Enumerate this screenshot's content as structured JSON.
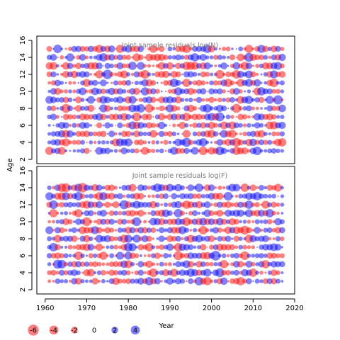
{
  "chart_data": {
    "type": "scatter",
    "ylabel": "Age",
    "xlabel": "Year",
    "x_range": [
      1961,
      2017
    ],
    "y_range": [
      3,
      15
    ],
    "x_ticks": [
      1960,
      1970,
      1980,
      1990,
      2000,
      2010,
      2020
    ],
    "y_ticks": [
      2,
      4,
      6,
      8,
      10,
      12,
      14,
      16
    ],
    "colors": {
      "positive": "#0000ff",
      "negative": "#ff0000"
    },
    "panels": [
      {
        "title": "Joint sample residuals log(N)",
        "xlim": [
          1958,
          2020
        ],
        "ylim": [
          1.5,
          16.5
        ],
        "ages": [
          3,
          4,
          5,
          6,
          7,
          8,
          9,
          10,
          11,
          12,
          13,
          14,
          15
        ]
      },
      {
        "title": "Joint sample residuals log(F)",
        "xlim": [
          1958,
          2020
        ],
        "ylim": [
          1.5,
          16.5
        ],
        "ages": [
          3,
          4,
          5,
          6,
          7,
          8,
          9,
          10,
          11,
          12,
          13,
          14
        ]
      }
    ],
    "legend": {
      "values": [
        -6,
        -4,
        -2,
        0,
        2,
        4
      ],
      "labels": [
        "-6",
        "-4",
        "-2",
        "0",
        "2",
        "4"
      ]
    }
  }
}
